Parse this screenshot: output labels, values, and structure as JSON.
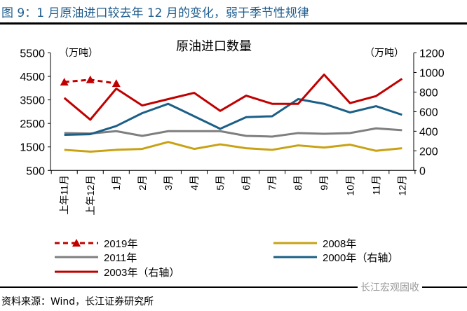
{
  "figure_title": "图 9：1 月原油进口较去年 12 月的变化，弱于季节性规律",
  "source": "资料来源：Wind，长江证券研究所",
  "watermark": "长江宏观固收",
  "chart_data": {
    "type": "line",
    "title": "原油进口数量",
    "left_unit": "（万吨）",
    "right_unit": "（万吨）",
    "categories": [
      "上年11月",
      "上年12月",
      "1月",
      "2月",
      "3月",
      "4月",
      "5月",
      "6月",
      "7月",
      "8月",
      "9月",
      "10月",
      "11月",
      "12月"
    ],
    "left_axis": {
      "range": [
        500,
        5500
      ],
      "ticks": [
        500,
        1500,
        2500,
        3500,
        4500,
        5500
      ]
    },
    "right_axis": {
      "range": [
        0,
        1200
      ],
      "ticks": [
        0,
        200,
        400,
        600,
        800,
        1000,
        1200
      ]
    },
    "grid": false,
    "legend_placement": "bottom",
    "series": [
      {
        "name": "2019年",
        "axis": "left",
        "color": "#c00000",
        "style": "dashed-triangle",
        "values": [
          4260,
          4360,
          4200,
          null,
          null,
          null,
          null,
          null,
          null,
          null,
          null,
          null,
          null,
          null
        ]
      },
      {
        "name": "2008年",
        "axis": "left",
        "color": "#c9a214",
        "style": "solid",
        "values": [
          1375,
          1300,
          1375,
          1415,
          1710,
          1415,
          1610,
          1445,
          1375,
          1565,
          1475,
          1595,
          1335,
          1445
        ]
      },
      {
        "name": "2011年",
        "axis": "left",
        "color": "#7f7f7f",
        "style": "solid",
        "values": [
          2090,
          2070,
          2170,
          1970,
          2170,
          2170,
          2170,
          1970,
          1940,
          2090,
          2060,
          2090,
          2290,
          2210
        ]
      },
      {
        "name": "2000年（右轴）",
        "axis": "right",
        "color": "#1b5f86",
        "style": "solid",
        "values": [
          363,
          370,
          453,
          585,
          680,
          553,
          425,
          544,
          553,
          728,
          680,
          592,
          656,
          568
        ]
      },
      {
        "name": "2003年（右轴）",
        "axis": "right",
        "color": "#c00000",
        "style": "solid",
        "values": [
          740,
          518,
          835,
          663,
          728,
          792,
          608,
          763,
          680,
          680,
          978,
          687,
          759,
          935
        ]
      }
    ]
  }
}
